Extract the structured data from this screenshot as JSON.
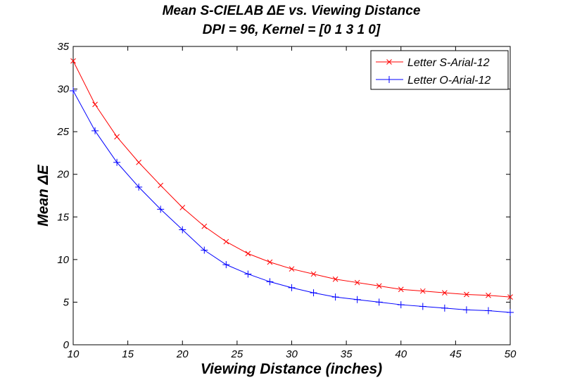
{
  "chart_data": {
    "type": "line",
    "title": "Mean S-CIELAB ΔE vs. Viewing Distance",
    "subtitle": "DPI = 96, Kernel = [0 1 3 1 0]",
    "xlabel": "Viewing Distance (inches)",
    "ylabel": "Mean ΔE",
    "xlim": [
      10,
      50
    ],
    "ylim": [
      0,
      35
    ],
    "xticks": [
      10,
      15,
      20,
      25,
      30,
      35,
      40,
      45,
      50
    ],
    "yticks": [
      0,
      5,
      10,
      15,
      20,
      25,
      30,
      35
    ],
    "grid": false,
    "legend_position": "top-right",
    "x": [
      10,
      12,
      14,
      16,
      18,
      20,
      22,
      24,
      26,
      28,
      30,
      32,
      34,
      36,
      38,
      40,
      42,
      44,
      46,
      48,
      50
    ],
    "series": [
      {
        "name": "Letter S-Arial-12",
        "color": "#ff0000",
        "marker": "x",
        "values": [
          33.3,
          28.2,
          24.4,
          21.4,
          18.7,
          16.1,
          13.9,
          12.1,
          10.7,
          9.7,
          8.9,
          8.3,
          7.7,
          7.3,
          6.9,
          6.5,
          6.3,
          6.1,
          5.9,
          5.8,
          5.6
        ]
      },
      {
        "name": "Letter O-Arial-12",
        "color": "#0000ff",
        "marker": "+",
        "values": [
          29.8,
          25.1,
          21.4,
          18.5,
          15.9,
          13.5,
          11.1,
          9.4,
          8.3,
          7.4,
          6.7,
          6.1,
          5.6,
          5.3,
          5.0,
          4.7,
          4.5,
          4.3,
          4.1,
          4.0,
          3.8
        ]
      }
    ]
  }
}
